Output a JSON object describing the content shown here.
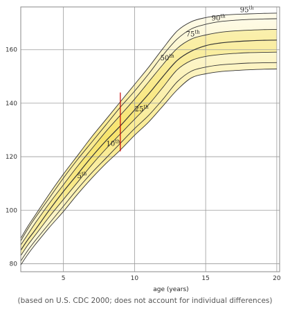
{
  "caption": "(based on U.S. CDC 2000; does not account for individual differences)",
  "chart_data": {
    "type": "line",
    "title": "",
    "xlabel": "age (years)",
    "ylabel": "",
    "xlim": [
      2,
      20.2
    ],
    "ylim": [
      77,
      176
    ],
    "xticks": [
      5,
      10,
      15,
      20
    ],
    "yticks": [
      80,
      100,
      120,
      140,
      160
    ],
    "grid": true,
    "x": [
      2,
      2.5,
      3,
      4,
      5,
      6,
      7,
      8,
      9,
      10,
      11,
      12,
      13,
      14,
      15,
      16,
      17,
      18,
      19,
      20
    ],
    "series": [
      {
        "name": "5",
        "label": "5",
        "sup": "th",
        "label_x": 6.3,
        "label_y": 112,
        "values": [
          79.5,
          83.5,
          87,
          93.5,
          99.5,
          106,
          112,
          117.5,
          122.5,
          128,
          133,
          139,
          145,
          149.5,
          151,
          151.8,
          152.2,
          152.5,
          152.7,
          152.8
        ]
      },
      {
        "name": "10",
        "label": "10",
        "sup": "th",
        "label_x": 8.5,
        "label_y": 124,
        "values": [
          81,
          85,
          88.5,
          95,
          101.5,
          108,
          114,
          119.5,
          125,
          130.5,
          135.5,
          141.5,
          148,
          152,
          153.5,
          154.3,
          154.7,
          155,
          155.1,
          155.2
        ]
      },
      {
        "name": "25",
        "label": "25",
        "sup": "th",
        "label_x": 10.5,
        "label_y": 137,
        "values": [
          83,
          87,
          90.5,
          97.5,
          104,
          110.5,
          117,
          123,
          128.5,
          134,
          139.5,
          146,
          152.5,
          156,
          157.5,
          158.2,
          158.6,
          158.9,
          159,
          159.1
        ]
      },
      {
        "name": "50",
        "label": "50",
        "sup": "th",
        "label_x": 12.3,
        "label_y": 156,
        "values": [
          85,
          89,
          92.5,
          100,
          107,
          113.5,
          120,
          126,
          131.5,
          137.5,
          143.5,
          150,
          156,
          159.5,
          161.5,
          162.5,
          163,
          163.3,
          163.5,
          163.6
        ]
      },
      {
        "name": "75",
        "label": "75",
        "sup": "th",
        "label_x": 14.1,
        "label_y": 165,
        "values": [
          87,
          91,
          95,
          102.5,
          109.5,
          116.5,
          123,
          129.5,
          135.5,
          141.5,
          148,
          154.5,
          160.5,
          164,
          165.5,
          166.5,
          167,
          167.3,
          167.5,
          167.6
        ]
      },
      {
        "name": "90",
        "label": "90",
        "sup": "th",
        "label_x": 15.9,
        "label_y": 171,
        "values": [
          88.5,
          93,
          97,
          104.5,
          112,
          119,
          125.5,
          132,
          138.5,
          144.5,
          151,
          158,
          164,
          167.8,
          169.5,
          170.5,
          171,
          171.3,
          171.5,
          171.6
        ]
      },
      {
        "name": "95",
        "label": "95",
        "sup": "th",
        "label_x": 17.9,
        "label_y": 174,
        "values": [
          89.5,
          94,
          98,
          106,
          113.5,
          120.5,
          127.5,
          134,
          140.5,
          147,
          153.5,
          160.5,
          167,
          170.5,
          172,
          172.8,
          173.2,
          173.4,
          173.6,
          173.7
        ]
      }
    ],
    "marker": {
      "x": 9,
      "y_from": 122,
      "y_to": 144,
      "color": "#cc0000"
    },
    "band_color": "#f2d000",
    "line_color": "#333333"
  }
}
